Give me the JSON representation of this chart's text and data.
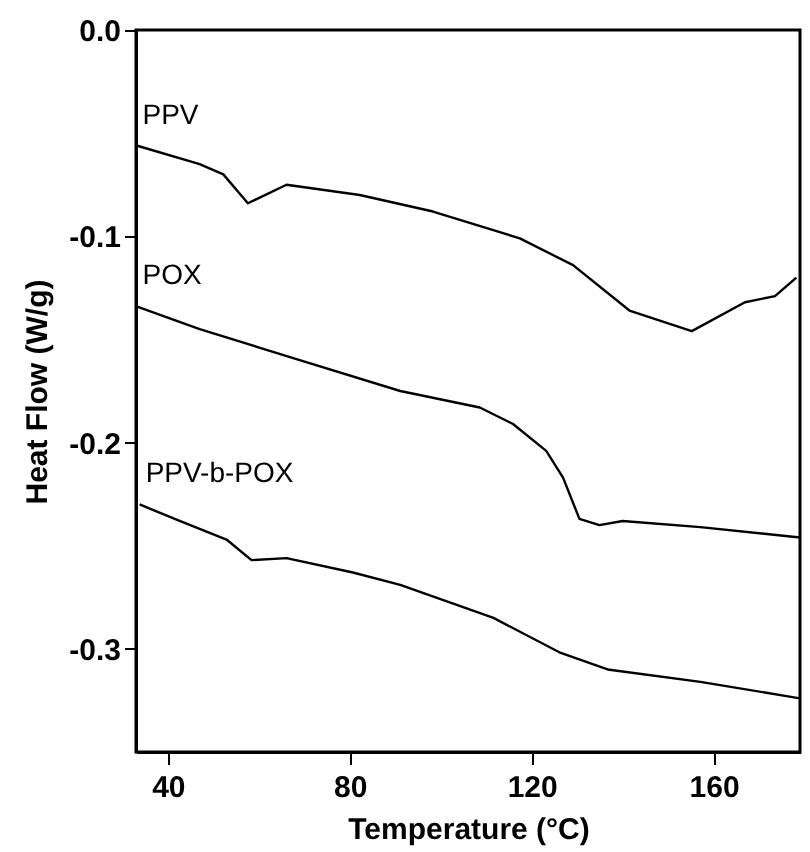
{
  "chart_data": {
    "type": "line",
    "xlabel": "Temperature (°C)",
    "ylabel": "Heat Flow (W/g)",
    "xlim": [
      33,
      179
    ],
    "xticks": [
      40,
      80,
      120,
      160
    ],
    "ylim": [
      -0.35,
      0
    ],
    "yticks": [
      {
        "value": 0,
        "label": "0.0"
      },
      -0.1,
      -0.2,
      -0.3
    ],
    "grid": false,
    "marker": "none",
    "line_style": "solid",
    "series": [
      {
        "name": "PPV",
        "color": "#000000",
        "x": [
          33.1,
          47,
          52.2,
          57.6,
          66.1,
          82.2,
          98.3,
          117.4,
          129.1,
          141.5,
          155.2,
          166.9,
          173.5,
          178.2
        ],
        "values": [
          -0.056,
          -0.065,
          -0.07,
          -0.084,
          -0.075,
          -0.08,
          -0.088,
          -0.101,
          -0.114,
          -0.136,
          -0.146,
          -0.132,
          -0.129,
          -0.12
        ]
      },
      {
        "name": "POX",
        "color": "#000000",
        "x": [
          33.1,
          47,
          69,
          91.1,
          108.6,
          115.9,
          123.2,
          126.9,
          130.5,
          134.9,
          140,
          157.1,
          179
        ],
        "values": [
          -0.134,
          -0.145,
          -0.16,
          -0.175,
          -0.183,
          -0.191,
          -0.204,
          -0.217,
          -0.237,
          -0.24,
          -0.238,
          -0.241,
          -0.246
        ]
      },
      {
        "name": "PPV-b-POX",
        "color": "#000000",
        "x": [
          33.8,
          42.6,
          52.9,
          58.4,
          66.1,
          80.7,
          91.1,
          111.6,
          126.4,
          136.7,
          157.1,
          179
        ],
        "values": [
          -0.23,
          -0.238,
          -0.247,
          -0.257,
          -0.256,
          -0.263,
          -0.269,
          -0.285,
          -0.302,
          -0.31,
          -0.316,
          -0.324
        ]
      }
    ]
  }
}
